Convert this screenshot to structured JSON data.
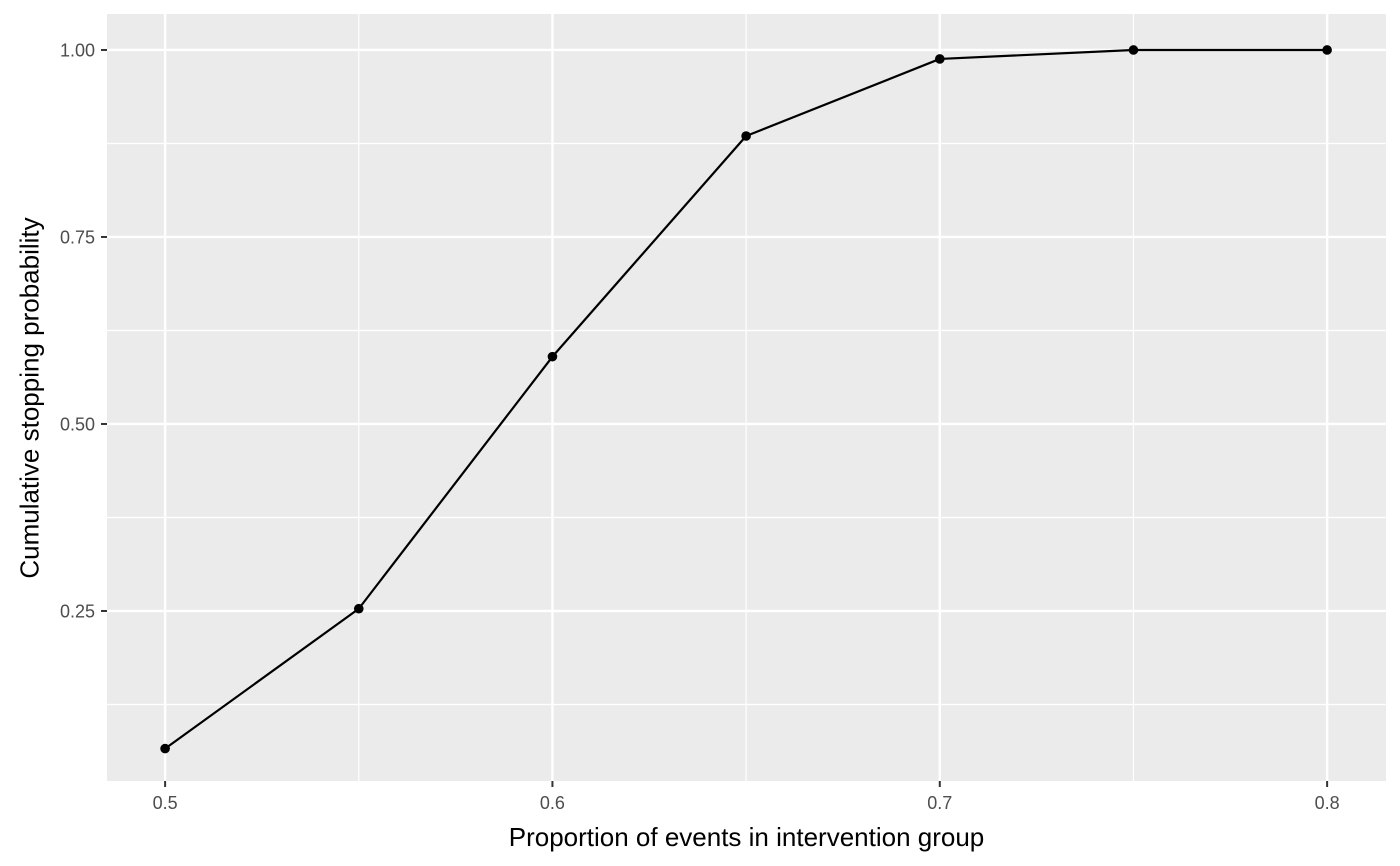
{
  "chart_data": {
    "type": "line",
    "title": "",
    "xlabel": "Proportion of events in intervention group",
    "ylabel": "Cumulative stopping probability",
    "series": [
      {
        "name": "Cumulative stopping probability",
        "x": [
          0.5,
          0.55,
          0.6,
          0.65,
          0.7,
          0.75,
          0.8
        ],
        "y": [
          0.066,
          0.253,
          0.59,
          0.885,
          0.988,
          1.0,
          1.0
        ]
      }
    ],
    "x_major_ticks": {
      "values": [
        0.5,
        0.6,
        0.7,
        0.8
      ],
      "labels": [
        "0.5",
        "0.6",
        "0.7",
        "0.8"
      ]
    },
    "y_major_ticks": {
      "values": [
        0.25,
        0.5,
        0.75,
        1.0
      ],
      "labels": [
        "0.25",
        "0.50",
        "0.75",
        "1.00"
      ]
    },
    "x_minor_ticks": [
      0.55,
      0.65,
      0.75
    ],
    "y_minor_ticks": [
      0.125,
      0.375,
      0.625,
      0.875
    ],
    "xlim": [
      0.485,
      0.8152
    ],
    "ylim": [
      0.0227,
      1.0481
    ],
    "grid": "major-and-minor",
    "legend": "none",
    "style": "ggplot2-grey",
    "colors": {
      "page_bg": "#FFFFFF",
      "panel_bg": "#EBEBEB",
      "grid_major": "#FFFFFF",
      "grid_minor": "#FFFFFF",
      "line": "#000000",
      "point": "#000000",
      "tick_mark": "#333333",
      "tick_label": "#4D4D4D",
      "axis_title": "#000000"
    }
  }
}
